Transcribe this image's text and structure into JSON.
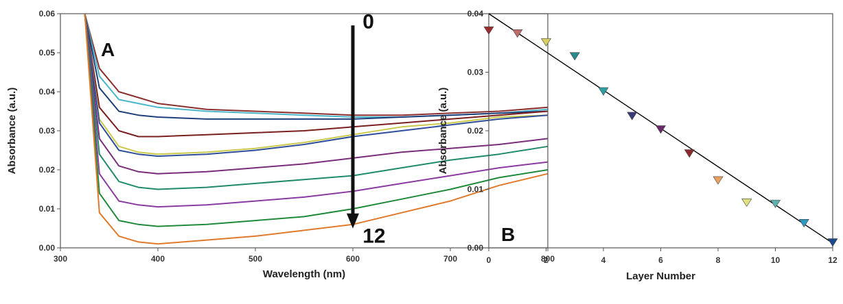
{
  "chart_data": [
    {
      "type": "line",
      "panel_label": "A",
      "xlabel": "Wavelength (nm)",
      "ylabel": "Absorbance (a.u.)",
      "xlim": [
        300,
        800
      ],
      "ylim": [
        0,
        0.06
      ],
      "xticks": [
        300,
        400,
        500,
        600,
        700,
        800
      ],
      "yticks": [
        0.0,
        0.01,
        0.02,
        0.03,
        0.04,
        0.05,
        0.06
      ],
      "ytick_labels": [
        "0.00",
        "0.01",
        "0.02",
        "0.03",
        "0.04",
        "0.05",
        "0.06"
      ],
      "grid": false,
      "annotations": [
        {
          "text": "0",
          "x": 610,
          "y": 0.058
        },
        {
          "text": "12",
          "x": 610,
          "y": 0.001
        }
      ],
      "arrow": {
        "x": 600,
        "y_from": 0.057,
        "y_to": 0.006
      },
      "series": [
        {
          "color": "#8b2e2e",
          "x": [
            325,
            340,
            360,
            380,
            400,
            450,
            500,
            550,
            600,
            650,
            700,
            750,
            800
          ],
          "values": [
            0.06,
            0.046,
            0.04,
            0.0385,
            0.037,
            0.0355,
            0.035,
            0.0345,
            0.034,
            0.034,
            0.0345,
            0.035,
            0.036
          ]
        },
        {
          "color": "#4bb6c9",
          "x": [
            325,
            340,
            360,
            380,
            400,
            450,
            500,
            550,
            600,
            650,
            700,
            750,
            800
          ],
          "values": [
            0.06,
            0.044,
            0.038,
            0.037,
            0.036,
            0.035,
            0.0345,
            0.034,
            0.0335,
            0.0335,
            0.034,
            0.0345,
            0.0355
          ]
        },
        {
          "color": "#1f3f7a",
          "x": [
            325,
            340,
            360,
            380,
            400,
            450,
            500,
            550,
            600,
            650,
            700,
            750,
            800
          ],
          "values": [
            0.06,
            0.041,
            0.035,
            0.034,
            0.0335,
            0.033,
            0.033,
            0.033,
            0.033,
            0.0335,
            0.034,
            0.0345,
            0.035
          ]
        },
        {
          "color": "#7a1e1e",
          "x": [
            325,
            340,
            360,
            380,
            400,
            450,
            500,
            550,
            600,
            650,
            700,
            750,
            800
          ],
          "values": [
            0.06,
            0.036,
            0.03,
            0.0285,
            0.0285,
            0.029,
            0.0295,
            0.03,
            0.031,
            0.032,
            0.033,
            0.034,
            0.035
          ]
        },
        {
          "color": "#c9c94a",
          "x": [
            325,
            340,
            360,
            380,
            400,
            450,
            500,
            550,
            600,
            650,
            700,
            750,
            800
          ],
          "values": [
            0.06,
            0.033,
            0.026,
            0.0245,
            0.024,
            0.0245,
            0.0255,
            0.027,
            0.029,
            0.031,
            0.032,
            0.0335,
            0.034
          ]
        },
        {
          "color": "#2e4d9a",
          "x": [
            325,
            340,
            360,
            380,
            400,
            450,
            500,
            550,
            600,
            650,
            700,
            750,
            800
          ],
          "values": [
            0.06,
            0.032,
            0.025,
            0.024,
            0.0235,
            0.024,
            0.025,
            0.0265,
            0.0285,
            0.03,
            0.0315,
            0.033,
            0.034
          ]
        },
        {
          "color": "#7a2c7a",
          "x": [
            325,
            340,
            360,
            380,
            400,
            450,
            500,
            550,
            600,
            650,
            700,
            750,
            800
          ],
          "values": [
            0.06,
            0.028,
            0.021,
            0.0195,
            0.019,
            0.0195,
            0.0205,
            0.0215,
            0.023,
            0.0245,
            0.0255,
            0.0265,
            0.028
          ]
        },
        {
          "color": "#1f8a6a",
          "x": [
            325,
            340,
            360,
            380,
            400,
            450,
            500,
            550,
            600,
            650,
            700,
            750,
            800
          ],
          "values": [
            0.06,
            0.024,
            0.017,
            0.0155,
            0.015,
            0.0155,
            0.0165,
            0.0175,
            0.0185,
            0.0205,
            0.0225,
            0.024,
            0.026
          ]
        },
        {
          "color": "#8a3aa0",
          "x": [
            325,
            340,
            360,
            380,
            400,
            450,
            500,
            550,
            600,
            650,
            700,
            750,
            800
          ],
          "values": [
            0.06,
            0.019,
            0.012,
            0.011,
            0.0105,
            0.011,
            0.012,
            0.013,
            0.0145,
            0.0165,
            0.0185,
            0.0205,
            0.022
          ]
        },
        {
          "color": "#1e8a3a",
          "x": [
            325,
            340,
            360,
            380,
            400,
            450,
            500,
            550,
            600,
            650,
            700,
            750,
            800
          ],
          "values": [
            0.06,
            0.014,
            0.007,
            0.006,
            0.0055,
            0.006,
            0.007,
            0.008,
            0.01,
            0.0125,
            0.015,
            0.018,
            0.02
          ]
        },
        {
          "color": "#e07a2a",
          "x": [
            325,
            340,
            360,
            380,
            400,
            450,
            500,
            550,
            600,
            650,
            700,
            750,
            800
          ],
          "values": [
            0.06,
            0.009,
            0.003,
            0.0015,
            0.001,
            0.002,
            0.003,
            0.0045,
            0.006,
            0.009,
            0.012,
            0.016,
            0.019
          ]
        }
      ]
    },
    {
      "type": "scatter",
      "panel_label": "B",
      "xlabel": "Layer Number",
      "ylabel": "Absorbance (a.u.)",
      "xlim": [
        0,
        12
      ],
      "ylim": [
        0,
        0.04
      ],
      "xticks": [
        0,
        2,
        4,
        6,
        8,
        10,
        12
      ],
      "yticks": [
        0.0,
        0.01,
        0.02,
        0.03,
        0.04
      ],
      "ytick_labels": [
        "0.00",
        "0.01",
        "0.02",
        "0.03",
        "0.04"
      ],
      "grid": false,
      "marker": "triangle-down",
      "points": [
        {
          "x": 0,
          "y": 0.0372,
          "color": "#9a2e2e"
        },
        {
          "x": 1,
          "y": 0.0367,
          "color": "#c06a6a"
        },
        {
          "x": 2,
          "y": 0.0352,
          "color": "#d8d060"
        },
        {
          "x": 3,
          "y": 0.0328,
          "color": "#2a8a8a"
        },
        {
          "x": 4,
          "y": 0.0268,
          "color": "#2aa0a0"
        },
        {
          "x": 5,
          "y": 0.0226,
          "color": "#3a3a7a"
        },
        {
          "x": 6,
          "y": 0.0203,
          "color": "#6a2a6a"
        },
        {
          "x": 7,
          "y": 0.0162,
          "color": "#8a2a2a"
        },
        {
          "x": 8,
          "y": 0.0116,
          "color": "#e8a060"
        },
        {
          "x": 9,
          "y": 0.0078,
          "color": "#e0e080"
        },
        {
          "x": 10,
          "y": 0.0076,
          "color": "#60b0b0"
        },
        {
          "x": 11,
          "y": 0.0043,
          "color": "#2a9ac0"
        },
        {
          "x": 12,
          "y": 0.001,
          "color": "#1a4a8a"
        }
      ],
      "fit_line": {
        "x": [
          0,
          12
        ],
        "y": [
          0.04,
          0.0008
        ],
        "color": "#000000"
      }
    }
  ]
}
